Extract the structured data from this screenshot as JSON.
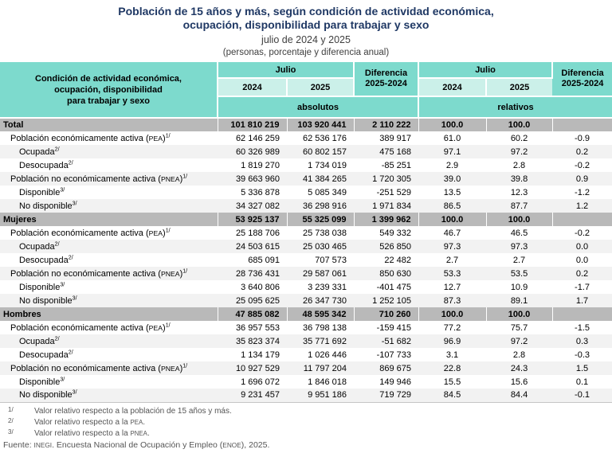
{
  "title": {
    "line1": "Población de 15 años y más, según condición de actividad económica,",
    "line2": "ocupación, disponibilidad para trabajar y sexo",
    "subtitle": "julio de 2024 y 2025",
    "unit_note": "(personas, porcentaje y diferencia anual)"
  },
  "colors": {
    "title_blue": "#1F3864",
    "header_teal": "#7DDACD",
    "header_light_teal": "#CBF0E9",
    "section_gray": "#B9B9B9",
    "row_alt_gray": "#F2F2F2",
    "note_gray": "#555555"
  },
  "chart_data": {
    "type": "table",
    "title": "Población de 15 años y más, según condición de actividad económica, ocupación, disponibilidad para trabajar y sexo",
    "subtitle": "julio de 2024 y 2025",
    "units": "personas, porcentaje y diferencia anual",
    "header": {
      "stub_lines": [
        "Condición de actividad económica,",
        "ocupación, disponibilidad",
        "para trabajar y sexo"
      ],
      "julio": "Julio",
      "diff_line1": "Diferencia",
      "diff_line2": "2025-2024",
      "year_2024": "2024",
      "year_2025": "2025",
      "absolutos": "absolutos",
      "relativos": "relativos"
    },
    "columns": [
      "Absolutos Julio 2024",
      "Absolutos Julio 2025",
      "Diferencia 2025-2024",
      "Relativos Julio 2024",
      "Relativos Julio 2025",
      "Diferencia 2025-2024"
    ],
    "rows": [
      {
        "type": "section",
        "label": [
          {
            "t": "Total"
          }
        ],
        "values": [
          "101 810 219",
          "103 920 441",
          "2 110 222",
          "100.0",
          "100.0",
          ""
        ]
      },
      {
        "type": "l1",
        "label": [
          {
            "t": "Población económicamente activa ("
          },
          {
            "t": "PEA",
            "sc": true
          },
          {
            "t": ")"
          },
          {
            "t": "1/",
            "sup": true
          }
        ],
        "values": [
          "62 146 259",
          "62 536 176",
          "389 917",
          "61.0",
          "60.2",
          "-0.9"
        ]
      },
      {
        "type": "l2",
        "label": [
          {
            "t": "Ocupada"
          },
          {
            "t": "2/",
            "sup": true
          }
        ],
        "values": [
          "60 326 989",
          "60 802 157",
          "475 168",
          "97.1",
          "97.2",
          "0.2"
        ]
      },
      {
        "type": "l2",
        "label": [
          {
            "t": "Desocupada"
          },
          {
            "t": "2/",
            "sup": true
          }
        ],
        "values": [
          "1 819 270",
          "1 734 019",
          "-85 251",
          "2.9",
          "2.8",
          "-0.2"
        ]
      },
      {
        "type": "l1",
        "label": [
          {
            "t": "Población no económicamente activa ("
          },
          {
            "t": "PNEA",
            "sc": true
          },
          {
            "t": ")"
          },
          {
            "t": "1/",
            "sup": true
          }
        ],
        "values": [
          "39 663 960",
          "41 384 265",
          "1 720 305",
          "39.0",
          "39.8",
          "0.9"
        ]
      },
      {
        "type": "l2",
        "label": [
          {
            "t": "Disponible"
          },
          {
            "t": "3/",
            "sup": true
          }
        ],
        "values": [
          "5 336 878",
          "5 085 349",
          "-251 529",
          "13.5",
          "12.3",
          "-1.2"
        ]
      },
      {
        "type": "l2",
        "label": [
          {
            "t": "No disponible"
          },
          {
            "t": "3/",
            "sup": true
          }
        ],
        "values": [
          "34 327 082",
          "36 298 916",
          "1 971 834",
          "86.5",
          "87.7",
          "1.2"
        ]
      },
      {
        "type": "section",
        "label": [
          {
            "t": "Mujeres"
          }
        ],
        "values": [
          "53 925 137",
          "55 325 099",
          "1 399 962",
          "100.0",
          "100.0",
          ""
        ]
      },
      {
        "type": "l1",
        "label": [
          {
            "t": "Población económicamente activa ("
          },
          {
            "t": "PEA",
            "sc": true
          },
          {
            "t": ")"
          },
          {
            "t": "1/",
            "sup": true
          }
        ],
        "values": [
          "25 188 706",
          "25 738 038",
          "549 332",
          "46.7",
          "46.5",
          "-0.2"
        ]
      },
      {
        "type": "l2",
        "label": [
          {
            "t": "Ocupada"
          },
          {
            "t": "2/",
            "sup": true
          }
        ],
        "values": [
          "24 503 615",
          "25 030 465",
          "526 850",
          "97.3",
          "97.3",
          "0.0"
        ]
      },
      {
        "type": "l2",
        "label": [
          {
            "t": "Desocupada"
          },
          {
            "t": "2/",
            "sup": true
          }
        ],
        "values": [
          "685 091",
          "707 573",
          "22 482",
          "2.7",
          "2.7",
          "0.0"
        ]
      },
      {
        "type": "l1",
        "label": [
          {
            "t": "Población no económicamente activa ("
          },
          {
            "t": "PNEA",
            "sc": true
          },
          {
            "t": ")"
          },
          {
            "t": "1/",
            "sup": true
          }
        ],
        "values": [
          "28 736 431",
          "29 587 061",
          "850 630",
          "53.3",
          "53.5",
          "0.2"
        ]
      },
      {
        "type": "l2",
        "label": [
          {
            "t": "Disponible"
          },
          {
            "t": "3/",
            "sup": true
          }
        ],
        "values": [
          "3 640 806",
          "3 239 331",
          "-401 475",
          "12.7",
          "10.9",
          "-1.7"
        ]
      },
      {
        "type": "l2",
        "label": [
          {
            "t": "No disponible"
          },
          {
            "t": "3/",
            "sup": true
          }
        ],
        "values": [
          "25 095 625",
          "26 347 730",
          "1 252 105",
          "87.3",
          "89.1",
          "1.7"
        ]
      },
      {
        "type": "section",
        "label": [
          {
            "t": "Hombres"
          }
        ],
        "values": [
          "47 885 082",
          "48 595 342",
          "710 260",
          "100.0",
          "100.0",
          ""
        ]
      },
      {
        "type": "l1",
        "label": [
          {
            "t": "Población económicamente activa ("
          },
          {
            "t": "PEA",
            "sc": true
          },
          {
            "t": ")"
          },
          {
            "t": "1/",
            "sup": true
          }
        ],
        "values": [
          "36 957 553",
          "36 798 138",
          "-159 415",
          "77.2",
          "75.7",
          "-1.5"
        ]
      },
      {
        "type": "l2",
        "label": [
          {
            "t": "Ocupada"
          },
          {
            "t": "2/",
            "sup": true
          }
        ],
        "values": [
          "35 823 374",
          "35 771 692",
          "-51 682",
          "96.9",
          "97.2",
          "0.3"
        ]
      },
      {
        "type": "l2",
        "label": [
          {
            "t": "Desocupada"
          },
          {
            "t": "2/",
            "sup": true
          }
        ],
        "values": [
          "1 134 179",
          "1 026 446",
          "-107 733",
          "3.1",
          "2.8",
          "-0.3"
        ]
      },
      {
        "type": "l1",
        "label": [
          {
            "t": "Población no económicamente activa ("
          },
          {
            "t": "PNEA",
            "sc": true
          },
          {
            "t": ")"
          },
          {
            "t": "1/",
            "sup": true
          }
        ],
        "values": [
          "10 927 529",
          "11 797 204",
          "869 675",
          "22.8",
          "24.3",
          "1.5"
        ]
      },
      {
        "type": "l2",
        "label": [
          {
            "t": "Disponible"
          },
          {
            "t": "3/",
            "sup": true
          }
        ],
        "values": [
          "1 696 072",
          "1 846 018",
          "149 946",
          "15.5",
          "15.6",
          "0.1"
        ]
      },
      {
        "type": "l2",
        "label": [
          {
            "t": "No disponible"
          },
          {
            "t": "3/",
            "sup": true
          }
        ],
        "values": [
          "9 231 457",
          "9 951 186",
          "719 729",
          "84.5",
          "84.4",
          "-0.1"
        ]
      }
    ]
  },
  "footnotes": [
    {
      "marker": "1/",
      "text": [
        {
          "t": "Valor relativo respecto a la población de 15 años y más."
        }
      ]
    },
    {
      "marker": "2/",
      "text": [
        {
          "t": "Valor relativo respecto a la "
        },
        {
          "t": "PEA",
          "sc": true
        },
        {
          "t": "."
        }
      ]
    },
    {
      "marker": "3/",
      "text": [
        {
          "t": "Valor relativo respecto a la "
        },
        {
          "t": "PNEA",
          "sc": true
        },
        {
          "t": "."
        }
      ]
    }
  ],
  "source": [
    {
      "t": "Fuente: "
    },
    {
      "t": "INEGI",
      "sc": true
    },
    {
      "t": ". Encuesta Nacional de Ocupación y Empleo ("
    },
    {
      "t": "ENOE",
      "sc": true
    },
    {
      "t": "), 2025."
    }
  ]
}
